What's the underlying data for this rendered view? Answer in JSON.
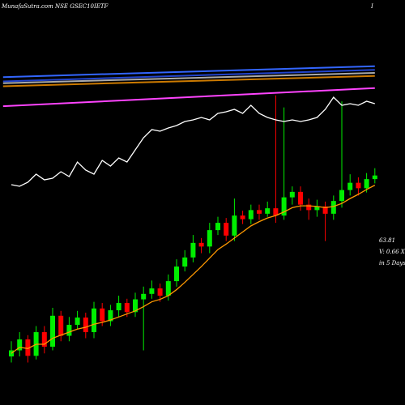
{
  "chart_data": {
    "type": "candlestick",
    "title": "MunafaSutra.com NSE GSEC10IETF",
    "corner_label": "I",
    "annotations": [
      "63.81",
      "V: 0.66 X",
      "in 5 Days"
    ],
    "up_color": "#00ee00",
    "down_color": "#ff0000",
    "ylim": [
      60,
      66.67
    ],
    "y2lim": [
      0,
      100
    ],
    "open": [
      60.8,
      60.9,
      61.08,
      60.81,
      61.2,
      60.96,
      61.47,
      61.14,
      61.32,
      61.44,
      61.2,
      61.59,
      61.38,
      61.56,
      61.68,
      61.53,
      61.74,
      61.83,
      61.92,
      61.8,
      62.04,
      62.28,
      62.43,
      62.67,
      62.61,
      62.88,
      63.0,
      62.79,
      63.12,
      63.06,
      63.21,
      63.15,
      63.24,
      63.12,
      63.42,
      63.51,
      63.3,
      63.21,
      63.27,
      63.15,
      63.36,
      63.54,
      63.66,
      63.57,
      63.72
    ],
    "high": [
      61.05,
      61.2,
      61.15,
      61.3,
      61.3,
      61.6,
      61.55,
      61.45,
      61.55,
      61.52,
      61.7,
      61.68,
      61.65,
      61.8,
      61.75,
      61.85,
      61.95,
      62.05,
      62.0,
      62.15,
      62.4,
      62.55,
      62.8,
      62.75,
      63.0,
      63.1,
      63.08,
      63.4,
      63.2,
      63.3,
      63.3,
      63.35,
      65.1,
      64.9,
      63.6,
      63.6,
      63.4,
      63.38,
      63.35,
      63.45,
      65.0,
      63.8,
      63.75,
      63.82,
      63.9
    ],
    "low": [
      60.7,
      60.8,
      60.7,
      60.75,
      60.85,
      60.9,
      61.05,
      61.05,
      61.25,
      61.1,
      61.1,
      61.3,
      61.3,
      61.45,
      61.45,
      61.45,
      60.9,
      61.75,
      61.7,
      61.72,
      61.95,
      62.2,
      62.35,
      62.5,
      62.5,
      62.8,
      62.7,
      62.7,
      62.98,
      62.98,
      63.05,
      63.1,
      63.0,
      63.05,
      63.3,
      63.2,
      63.05,
      63.1,
      62.7,
      63.05,
      63.25,
      63.45,
      63.45,
      63.5,
      63.65
    ],
    "close": [
      60.9,
      61.08,
      60.81,
      61.2,
      60.96,
      61.47,
      61.14,
      61.32,
      61.44,
      61.2,
      61.59,
      61.38,
      61.56,
      61.68,
      61.53,
      61.74,
      61.83,
      61.92,
      61.8,
      62.04,
      62.28,
      62.43,
      62.67,
      62.61,
      62.88,
      63.0,
      62.79,
      63.12,
      63.06,
      63.21,
      63.15,
      63.24,
      63.12,
      63.42,
      63.51,
      63.3,
      63.21,
      63.27,
      63.15,
      63.36,
      63.54,
      63.66,
      63.57,
      63.72,
      63.78
    ],
    "series": [
      {
        "color": "#ff9900",
        "values": [
          60.85,
          60.95,
          60.93,
          61.0,
          61.0,
          61.1,
          61.15,
          61.2,
          61.25,
          61.28,
          61.33,
          61.36,
          61.4,
          61.45,
          61.5,
          61.55,
          61.62,
          61.7,
          61.74,
          61.8,
          61.9,
          62.02,
          62.15,
          62.28,
          62.42,
          62.56,
          62.65,
          62.75,
          62.85,
          62.95,
          63.02,
          63.08,
          63.12,
          63.18,
          63.25,
          63.28,
          63.28,
          63.27,
          63.25,
          63.27,
          63.32,
          63.4,
          63.47,
          63.55,
          63.62
        ]
      },
      {
        "color": "#ffffff",
        "axis": "y2",
        "values": [
          54.4,
          54,
          55,
          57,
          55.6,
          56,
          57.6,
          56.4,
          60,
          58,
          57,
          60.4,
          59,
          61,
          60,
          63,
          66,
          68,
          67.6,
          68.4,
          69,
          70,
          70.4,
          71,
          70.4,
          72,
          72.4,
          73,
          72,
          74,
          72,
          71,
          70.4,
          70,
          70.4,
          70,
          70.4,
          71,
          73,
          76,
          74,
          74.4,
          74,
          75,
          74.4
        ]
      }
    ],
    "lines": [
      {
        "color": "#3366ff",
        "x": [
          -1,
          44
        ],
        "values": [
          65.4,
          65.58
        ]
      },
      {
        "color": "#2244cc",
        "x": [
          -1,
          44
        ],
        "values": [
          65.33,
          65.52
        ]
      },
      {
        "color": "#aaaaaa",
        "x": [
          -1,
          44
        ],
        "values": [
          65.3,
          65.47
        ]
      },
      {
        "color": "#cc7a00",
        "x": [
          -1,
          44
        ],
        "values": [
          65.25,
          65.42
        ]
      },
      {
        "color": "#ff44ff",
        "x": [
          -1,
          44
        ],
        "values": [
          64.92,
          65.22
        ]
      }
    ]
  }
}
